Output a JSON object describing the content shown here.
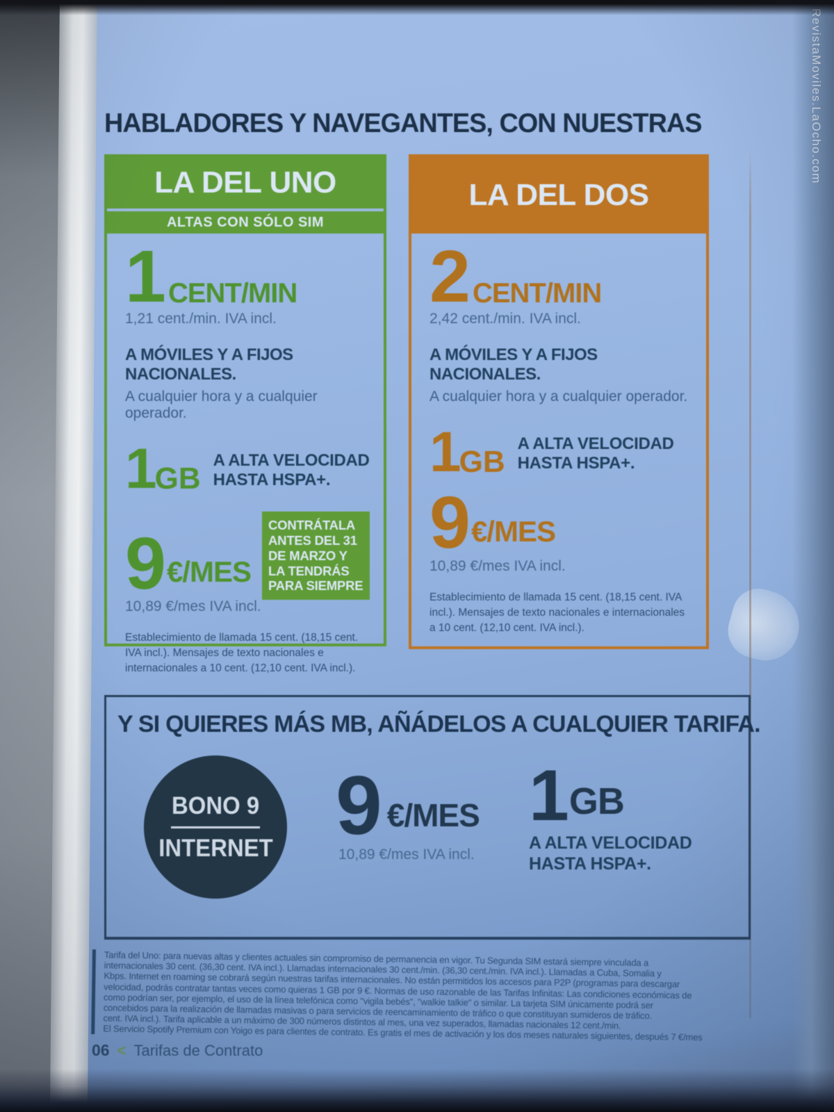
{
  "watermark": "RevistaMoviles.LaOcho.com",
  "headline": "HABLADORES Y NAVEGANTES, CON NUESTRAS",
  "colors": {
    "green": "#5d9b36",
    "orange": "#bd7524",
    "navy": "#1d3450",
    "circle_navy": "#223646",
    "paper_blue": "#96b5e1"
  },
  "cards": [
    {
      "title": "LA DEL UNO",
      "subtitle": "ALTAS CON SÓLO SIM",
      "rate_value": "1",
      "rate_unit": "CENT/MIN",
      "rate_iva": "1,21 cent./min. IVA incl.",
      "scope_title": "A MÓVILES Y A FIJOS NACIONALES.",
      "scope_sub": "A cualquier hora y a cualquier operador.",
      "data_value": "1",
      "data_unit": "GB",
      "data_desc_line1": "A ALTA VELOCIDAD",
      "data_desc_line2": "HASTA HSPA+.",
      "price_value": "9",
      "price_unit": "€/MES",
      "promo": "CONTRÁTALA ANTES DEL 31 DE MARZO Y LA TENDRÁS PARA SIEMPRE",
      "price_iva": "10,89 €/mes IVA incl.",
      "fine_print": "Establecimiento de llamada 15 cent. (18,15 cent. IVA incl.). Mensajes de texto nacionales e internacionales a 10 cent. (12,10 cent. IVA incl.)."
    },
    {
      "title": "LA DEL DOS",
      "rate_value": "2",
      "rate_unit": "CENT/MIN",
      "rate_iva": "2,42 cent./min. IVA incl.",
      "scope_title": "A MÓVILES Y A FIJOS NACIONALES.",
      "scope_sub": "A cualquier hora y a cualquier operador.",
      "data_value": "1",
      "data_unit": "GB",
      "data_desc_line1": "A ALTA VELOCIDAD",
      "data_desc_line2": "HASTA HSPA+.",
      "price_value": "9",
      "price_unit": "€/MES",
      "price_iva": "10,89 €/mes IVA incl.",
      "fine_print": "Establecimiento de llamada 15 cent. (18,15 cent. IVA incl.). Mensajes de texto nacionales e internacionales a 10 cent. (12,10 cent. IVA incl.)."
    }
  ],
  "addon": {
    "headline": "Y SI QUIERES MÁS MB, AÑÁDELOS A CUALQUIER TARIFA.",
    "badge_top": "BONO 9",
    "badge_bottom": "INTERNET",
    "price_value": "9",
    "price_unit": "€/MES",
    "price_iva": "10,89 €/mes IVA incl.",
    "data_value": "1",
    "data_unit": "GB",
    "data_desc_line1": "A ALTA VELOCIDAD",
    "data_desc_line2": "HASTA HSPA+."
  },
  "legal": {
    "lines": [
      "Tarifa del Uno: para nuevas altas y clientes actuales sin compromiso de permanencia en vigor. Tu Segunda SIM estará siempre vinculada a",
      "internacionales 30 cent. (36,30 cent. IVA incl.). Llamadas internacionales 30 cent./min. (36,30 cent./min. IVA incl.). Llamadas a Cuba, Somalia y",
      "Kbps. Internet en roaming se cobrará según nuestras tarifas internacionales. No están permitidos los accesos para P2P (programas para descargar",
      "velocidad, podrás contratar tantas veces como quieras 1 GB por 9 €. Normas de uso razonable de las Tarifas Infinitas: Las condiciones económicas de",
      "como podrían ser, por ejemplo, el uso de la línea telefónica como \"vigila bebés\", \"walkie talkie\" o similar. La tarjeta SIM únicamente podrá ser",
      "concebidos para la realización de llamadas masivas o para servicios de reencaminamiento de tráfico o que constituyan sumideros de tráfico.",
      "cent. IVA incl.). Tarifa aplicable a un máximo de 300 números distintos al mes, una vez superados, llamadas nacionales 12 cent./min.",
      "El Servicio Spotify Premium con Yoigo es para clientes de contrato. Es gratis el mes de activación y los dos meses naturales siguientes, después 7 €/mes"
    ]
  },
  "footer": {
    "page_number": "06",
    "separator": "<",
    "label": "Tarifas de Contrato"
  }
}
